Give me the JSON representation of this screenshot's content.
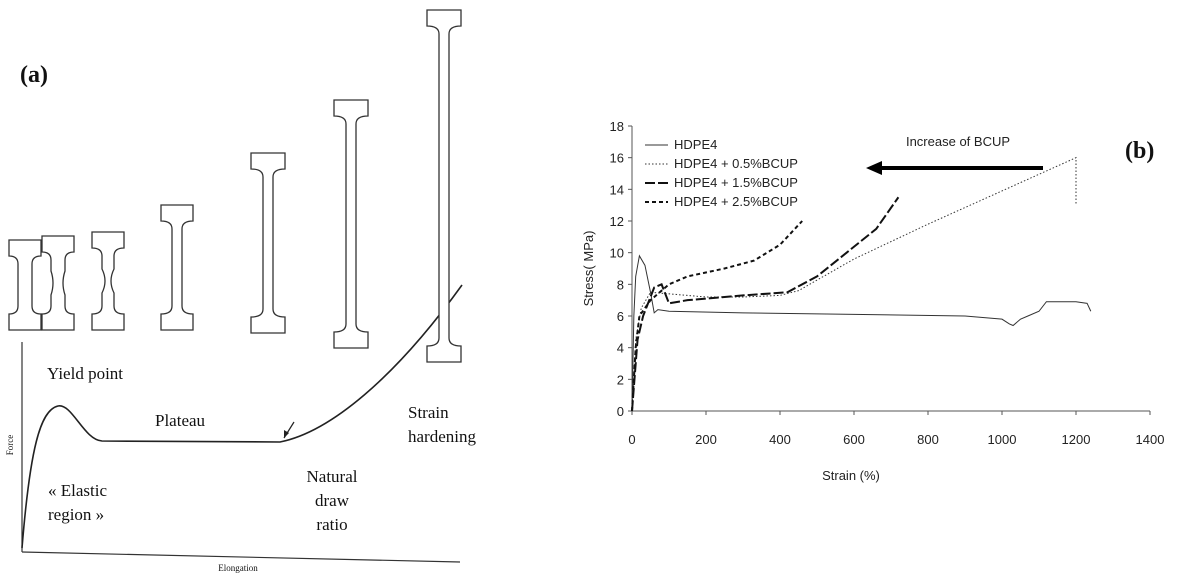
{
  "panel_a": {
    "label": "(a)",
    "yield_point": "Yield point",
    "plateau": "Plateau",
    "strain_hardening": [
      "Strain",
      "hardening"
    ],
    "elastic_region": [
      "« Elastic",
      "region »"
    ],
    "natural_draw_ratio": [
      "Natural",
      "draw",
      "ratio"
    ],
    "y_label": "Force",
    "x_label": "Elongation"
  },
  "chart_data": {
    "type": "line",
    "panel_label": "(b)",
    "annotation": "Increase of BCUP",
    "xlabel": "Strain (%)",
    "ylabel": "Stress( MPa)",
    "xlim": [
      0,
      1400
    ],
    "xticks": [
      0,
      200,
      400,
      600,
      800,
      1000,
      1200,
      1400
    ],
    "ylim": [
      0,
      18
    ],
    "yticks": [
      0,
      2,
      4,
      6,
      8,
      10,
      12,
      14,
      16,
      18
    ],
    "legend": "upper left",
    "series": [
      {
        "name": "HDPE4",
        "color": "#333333",
        "line_style": "solid",
        "line_width": 1,
        "x": [
          0,
          5,
          10,
          20,
          35,
          50,
          60,
          70,
          100,
          300,
          600,
          900,
          1000,
          1020,
          1030,
          1050,
          1070,
          1100,
          1120,
          1200,
          1230,
          1240
        ],
        "values": [
          0,
          6,
          8.5,
          9.8,
          9.2,
          7.5,
          6.2,
          6.4,
          6.3,
          6.2,
          6.1,
          6.0,
          5.8,
          5.5,
          5.4,
          5.8,
          6.0,
          6.3,
          6.9,
          6.9,
          6.8,
          6.3
        ]
      },
      {
        "name": "HDPE4 + 0.5%BCUP",
        "color": "#333333",
        "line_style": "dotted",
        "line_width": 1,
        "x": [
          0,
          10,
          25,
          50,
          100,
          200,
          300,
          400,
          450,
          600,
          800,
          1000,
          1200,
          1200
        ],
        "values": [
          0,
          4.5,
          6.5,
          7.5,
          7.4,
          7.2,
          7.2,
          7.3,
          7.6,
          9.6,
          11.8,
          13.9,
          16,
          13
        ]
      },
      {
        "name": "HDPE4 + 1.5%BCUP",
        "color": "#111111",
        "line_style": "dashed",
        "line_width": 2,
        "x": [
          0,
          15,
          30,
          60,
          80,
          100,
          150,
          300,
          420,
          500,
          580,
          660,
          720
        ],
        "values": [
          0,
          4.5,
          6,
          7.8,
          8,
          6.8,
          7,
          7.3,
          7.5,
          8.5,
          10,
          11.5,
          13.5
        ]
      },
      {
        "name": "HDPE4 + 2.5%BCUP",
        "color": "#111111",
        "line_style": "short-dashed",
        "line_width": 2,
        "x": [
          0,
          10,
          20,
          50,
          100,
          150,
          250,
          330,
          400,
          460
        ],
        "values": [
          0,
          4,
          6,
          7,
          8,
          8.5,
          9,
          9.5,
          10.5,
          12
        ]
      }
    ]
  }
}
